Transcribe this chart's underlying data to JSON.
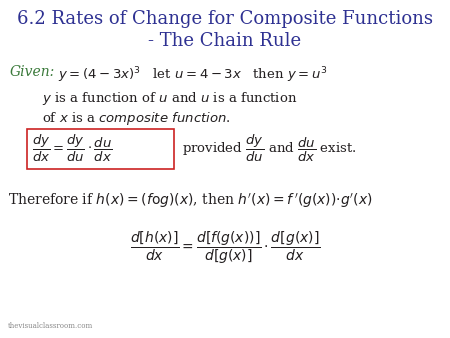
{
  "background_color": "#ffffff",
  "title_color": "#2E3192",
  "title_line1": "6.2 Rates of Change for Composite Functions",
  "title_line2": "- The Chain Rule",
  "body_color": "#231f20",
  "given_color": "#3b7a3b",
  "watermark": "thevisualclassroom.com"
}
